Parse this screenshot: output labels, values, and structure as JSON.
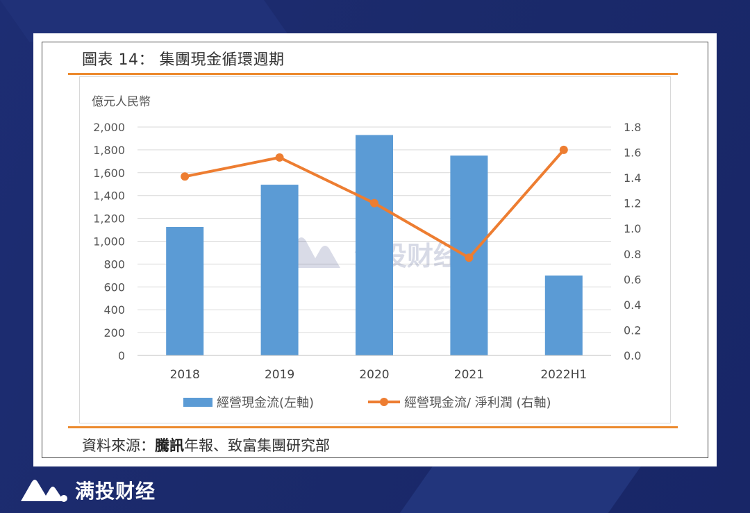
{
  "page": {
    "title": "圖表 14： 集團現金循環週期",
    "source_prefix": "資料來源：",
    "source_bold": "騰訊",
    "source_rest": "年報、致富集團研究部",
    "watermark": "满投财经",
    "brand": "满投财经"
  },
  "colors": {
    "bar": "#5b9bd5",
    "line": "#ed7d31",
    "accent": "#ec8a2e",
    "background": "#1b2a6b"
  },
  "chart_data": {
    "type": "bar",
    "categories": [
      "2018",
      "2019",
      "2020",
      "2021",
      "2022H1"
    ],
    "y_left_label": "億元人民幣",
    "y_left_lim": [
      0,
      2000
    ],
    "y_left_ticks": [
      "0",
      "200",
      "400",
      "600",
      "800",
      "1,000",
      "1,200",
      "1,400",
      "1,600",
      "1,800",
      "2,000"
    ],
    "y_right_lim": [
      0,
      1.8
    ],
    "y_right_ticks": [
      "0.0",
      "0.2",
      "0.4",
      "0.6",
      "0.8",
      "1.0",
      "1.2",
      "1.4",
      "1.6",
      "1.8"
    ],
    "grid": true,
    "legend_position": "bottom",
    "series": [
      {
        "name": "經營現金流(左軸)",
        "type": "bar",
        "axis": "left",
        "values": [
          1125,
          1495,
          1930,
          1750,
          700
        ]
      },
      {
        "name": "經營現金流/ 淨利潤 (右軸)",
        "type": "line",
        "axis": "right",
        "values": [
          1.41,
          1.56,
          1.2,
          0.77,
          1.62
        ]
      }
    ]
  }
}
